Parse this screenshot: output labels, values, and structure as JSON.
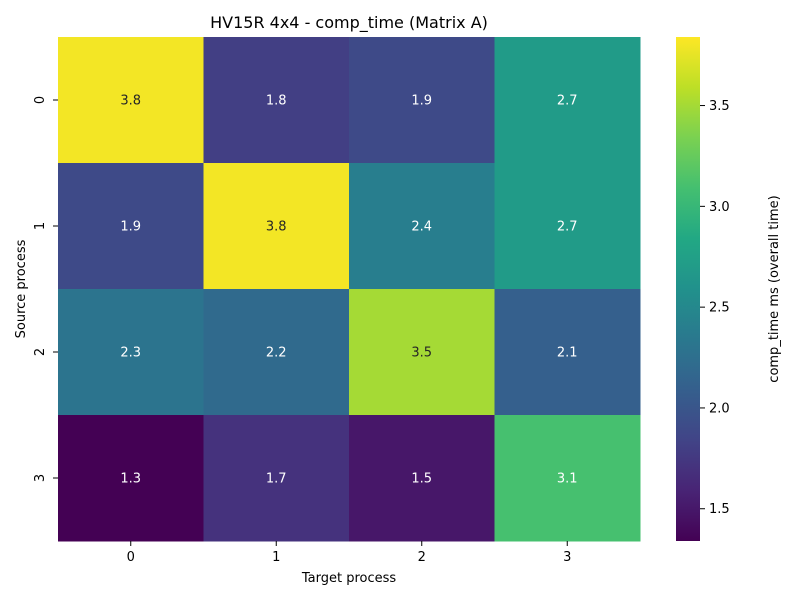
{
  "chart_data": {
    "type": "heatmap",
    "title": "HV15R 4x4 - comp_time (Matrix A)",
    "xlabel": "Target process",
    "ylabel": "Source process",
    "x_categories": [
      "0",
      "1",
      "2",
      "3"
    ],
    "y_categories": [
      "0",
      "1",
      "2",
      "3"
    ],
    "values": [
      [
        3.8,
        1.8,
        1.9,
        2.7
      ],
      [
        1.9,
        3.8,
        2.4,
        2.7
      ],
      [
        2.3,
        2.2,
        3.5,
        2.1
      ],
      [
        1.3,
        1.7,
        1.5,
        3.1
      ]
    ],
    "value_labels": [
      [
        "3.8",
        "1.8",
        "1.9",
        "2.7"
      ],
      [
        "1.9",
        "3.8",
        "2.4",
        "2.7"
      ],
      [
        "2.3",
        "2.2",
        "3.5",
        "2.1"
      ],
      [
        "1.3",
        "1.7",
        "1.5",
        "3.1"
      ]
    ],
    "colorbar": {
      "label": "comp_time ms (overall time)",
      "range": [
        1.34,
        3.84
      ],
      "ticks": [
        1.5,
        2.0,
        2.5,
        3.0,
        3.5
      ],
      "tick_labels": [
        "1.5",
        "2.0",
        "2.5",
        "3.0",
        "3.5"
      ]
    },
    "colormap": "viridis",
    "grid": false
  }
}
